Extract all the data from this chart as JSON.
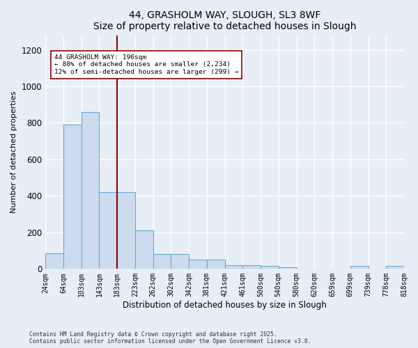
{
  "title": "44, GRASHOLM WAY, SLOUGH, SL3 8WF",
  "subtitle": "Size of property relative to detached houses in Slough",
  "xlabel": "Distribution of detached houses by size in Slough",
  "ylabel": "Number of detached properties",
  "bar_color": "#ccdcee",
  "bar_edge_color": "#6aaad4",
  "bg_color": "#e8eef6",
  "grid_color": "#ffffff",
  "vline_color": "#8b0000",
  "vline_pos": 4,
  "annotation_text": "44 GRASHOLM WAY: 196sqm\n← 88% of detached houses are smaller (2,234)\n12% of semi-detached houses are larger (299) →",
  "annotation_box_color": "white",
  "annotation_box_edge": "#8b0000",
  "footer1": "Contains HM Land Registry data © Crown copyright and database right 2025.",
  "footer2": "Contains public sector information licensed under the Open Government Licence v3.0.",
  "bin_labels": [
    "24sqm",
    "64sqm",
    "103sqm",
    "143sqm",
    "183sqm",
    "223sqm",
    "262sqm",
    "302sqm",
    "342sqm",
    "381sqm",
    "421sqm",
    "461sqm",
    "500sqm",
    "540sqm",
    "580sqm",
    "620sqm",
    "659sqm",
    "699sqm",
    "739sqm",
    "778sqm",
    "818sqm"
  ],
  "bar_heights": [
    85,
    790,
    860,
    420,
    420,
    210,
    80,
    80,
    50,
    50,
    20,
    20,
    15,
    10,
    0,
    0,
    0,
    15,
    0,
    15
  ],
  "ylim": [
    0,
    1280
  ],
  "yticks": [
    0,
    200,
    400,
    600,
    800,
    1000,
    1200
  ]
}
